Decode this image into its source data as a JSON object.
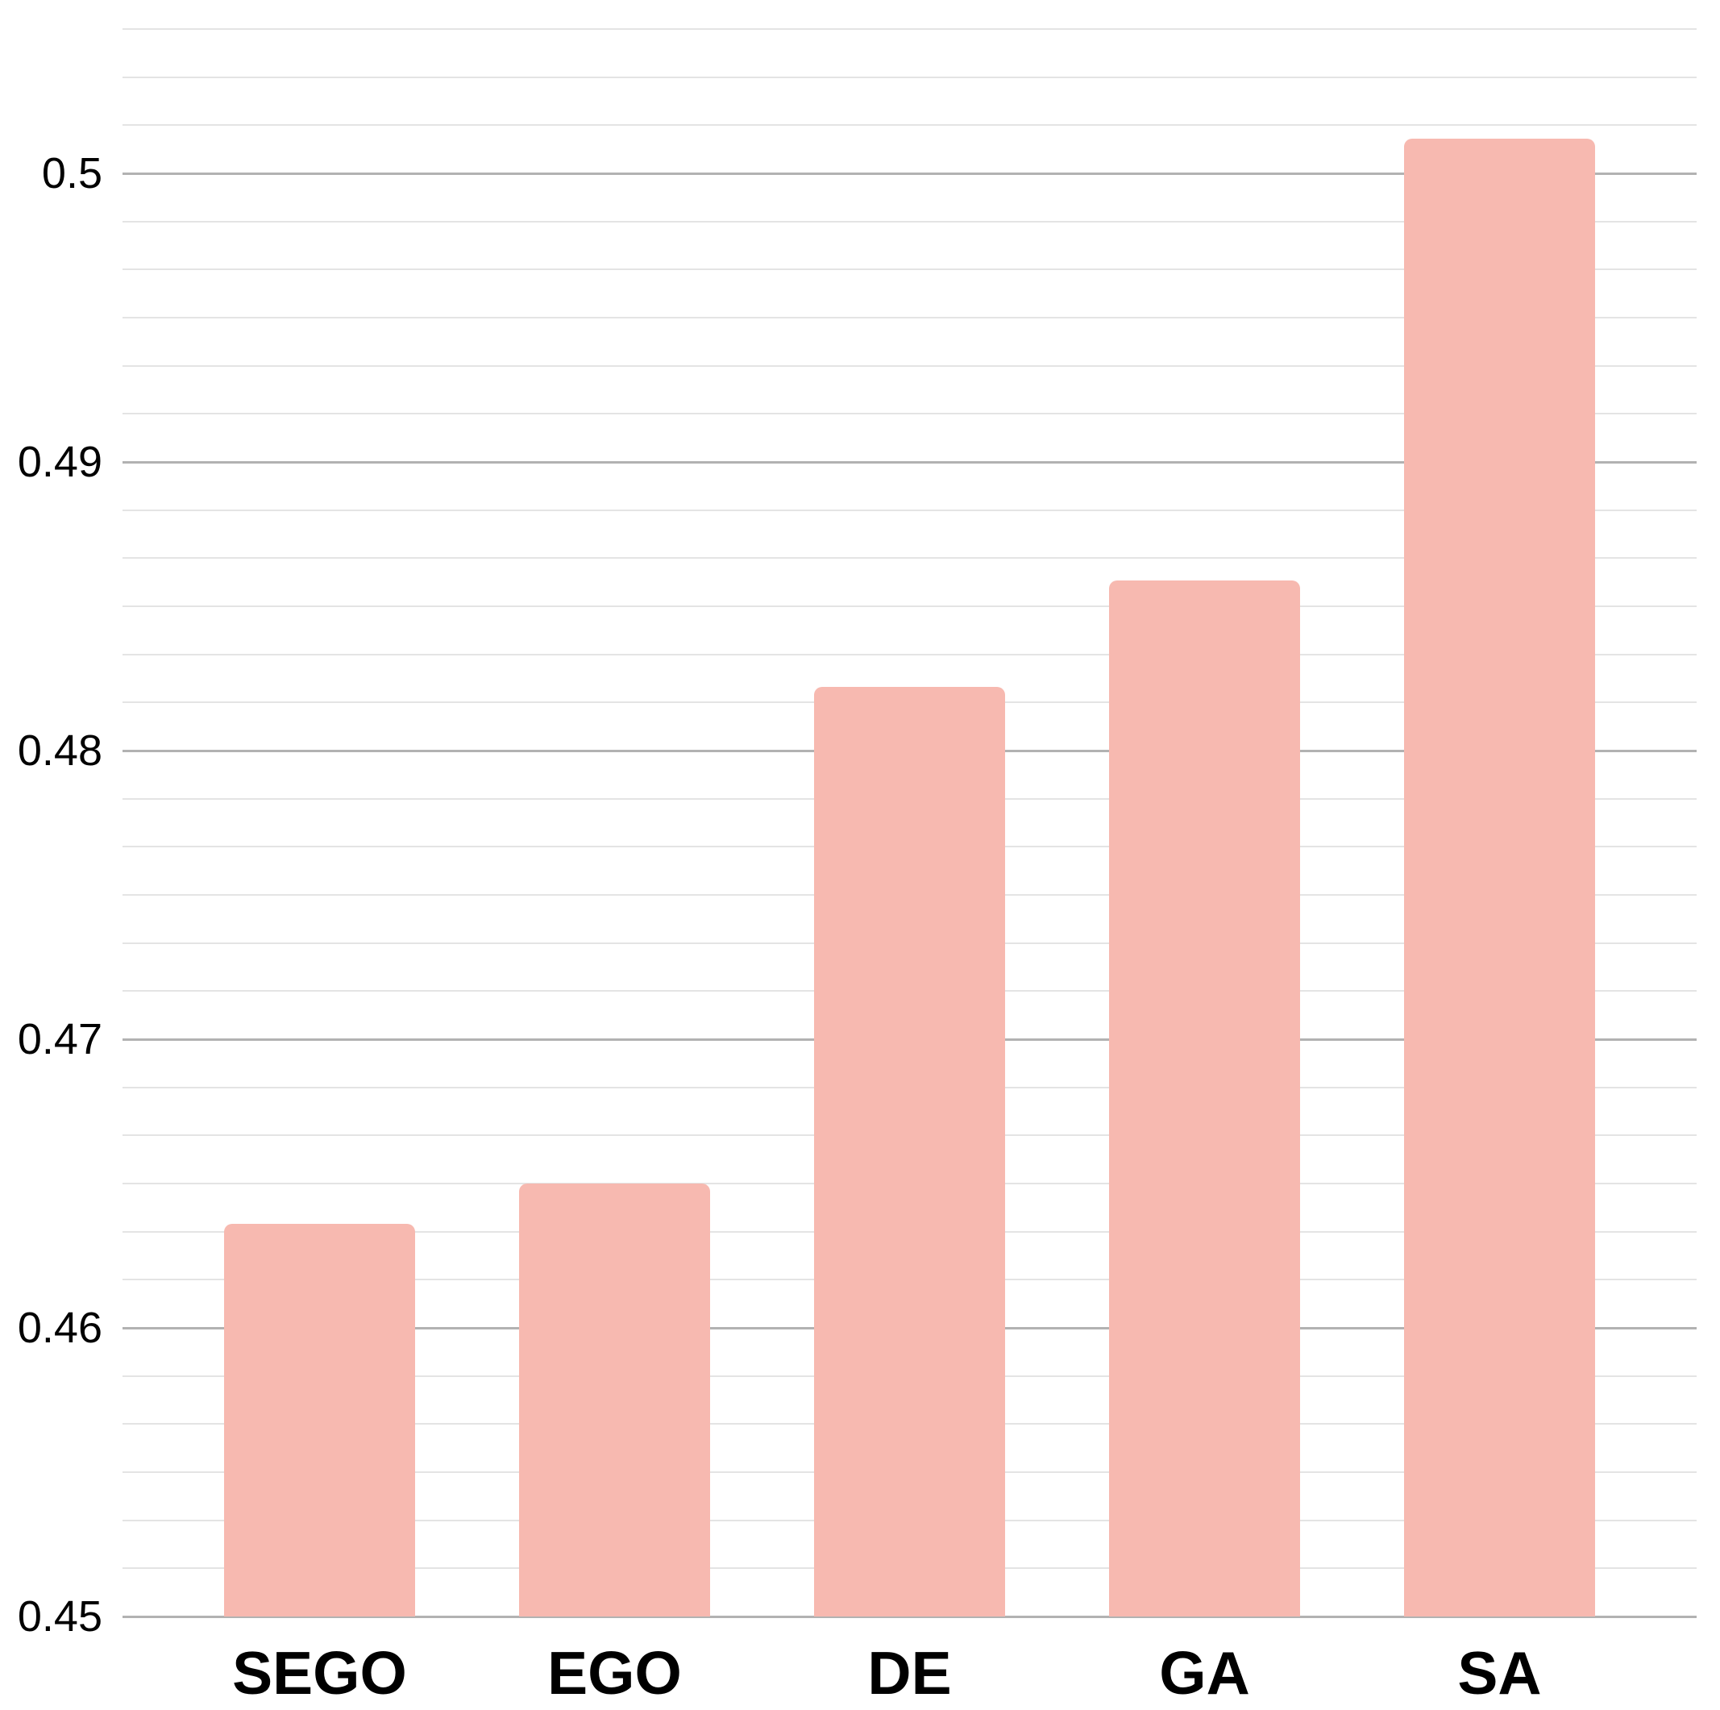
{
  "chart_data": {
    "type": "bar",
    "categories": [
      "SEGO",
      "EGO",
      "DE",
      "GA",
      "SA"
    ],
    "values": [
      0.4636,
      0.465,
      0.4822,
      0.4859,
      0.5012
    ],
    "title": "",
    "xlabel": "",
    "ylabel": "",
    "ylim": [
      0.45,
      0.505
    ],
    "y_major_step": 0.01,
    "y_minor_divisions": 6,
    "y_tick_labels": [
      "0.45",
      "0.46",
      "0.47",
      "0.48",
      "0.49",
      "0.5"
    ],
    "bar_color": "#f7b9b0",
    "grid": true,
    "legend_position": "none"
  }
}
